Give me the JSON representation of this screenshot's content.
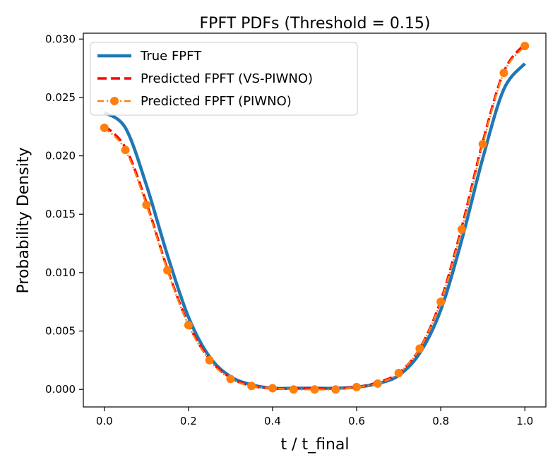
{
  "chart_data": {
    "type": "line",
    "title": "FPFT PDFs (Threshold = 0.15)",
    "xlabel": "t / t_final",
    "ylabel": "Probability Density",
    "xlim": [
      -0.05,
      1.05
    ],
    "ylim": [
      -0.0015,
      0.0305
    ],
    "xticks": [
      0.0,
      0.2,
      0.4,
      0.6,
      0.8,
      1.0
    ],
    "xtick_labels": [
      "0.0",
      "0.2",
      "0.4",
      "0.6",
      "0.8",
      "1.0"
    ],
    "yticks": [
      0.0,
      0.005,
      0.01,
      0.015,
      0.02,
      0.025,
      0.03
    ],
    "ytick_labels": [
      "0.000",
      "0.005",
      "0.010",
      "0.015",
      "0.020",
      "0.025",
      "0.030"
    ],
    "legend_position": "top-left",
    "x": [
      0.0,
      0.05,
      0.1,
      0.15,
      0.2,
      0.25,
      0.3,
      0.35,
      0.4,
      0.45,
      0.5,
      0.55,
      0.6,
      0.65,
      0.7,
      0.75,
      0.8,
      0.85,
      0.9,
      0.95,
      1.0
    ],
    "series": [
      {
        "name": "True FPFT",
        "color": "#1f77b4",
        "style": "solid",
        "marker": "none",
        "values": [
          0.0237,
          0.0224,
          0.0175,
          0.0115,
          0.0062,
          0.0028,
          0.0011,
          0.0004,
          0.0001,
          0.0001,
          0.0001,
          0.0001,
          0.0002,
          0.0005,
          0.0012,
          0.0031,
          0.0068,
          0.0128,
          0.0198,
          0.0257,
          0.0279
        ]
      },
      {
        "name": "Predicted FPFT (VS-PIWNO)",
        "color": "#ff0000",
        "style": "dashed",
        "marker": "none",
        "values": [
          0.0226,
          0.0207,
          0.016,
          0.0103,
          0.0056,
          0.0026,
          0.001,
          0.0003,
          0.0001,
          0.0001,
          0.0001,
          0.0001,
          0.0002,
          0.0006,
          0.0014,
          0.0035,
          0.0076,
          0.0139,
          0.0212,
          0.0272,
          0.0296
        ]
      },
      {
        "name": "Predicted FPFT (PIWNO)",
        "color": "#ff7f0e",
        "style": "dashdot",
        "marker": "circle",
        "values": [
          0.0224,
          0.0205,
          0.0158,
          0.0102,
          0.0055,
          0.0025,
          0.0009,
          0.0003,
          0.0001,
          0.0,
          0.0,
          0.0,
          0.0002,
          0.0005,
          0.0014,
          0.0035,
          0.0075,
          0.0137,
          0.021,
          0.0271,
          0.0294
        ]
      }
    ]
  }
}
